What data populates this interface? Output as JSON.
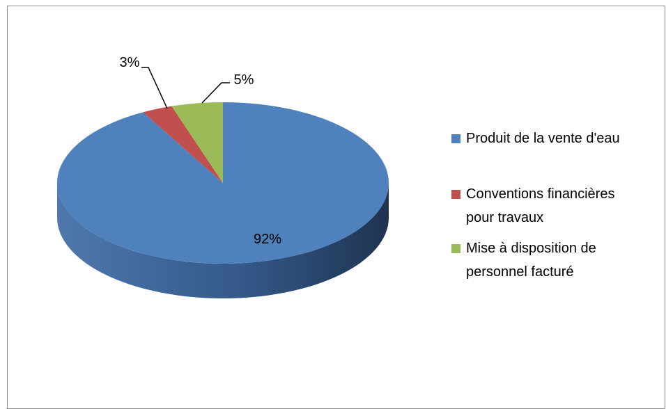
{
  "chart_data": {
    "type": "pie",
    "style": "3d",
    "categories": [
      "Produit de la vente d'eau",
      "Conventions financières pour travaux",
      "Mise à disposition de personnel facturé"
    ],
    "values": [
      92,
      3,
      5
    ],
    "data_labels": [
      "92%",
      "3%",
      "5%"
    ],
    "legend_position": "right",
    "legend_lines": [
      [
        "Produit de la vente d'eau"
      ],
      [
        "Conventions financières",
        "pour travaux"
      ],
      [
        "Mise à disposition de",
        "personnel facturé"
      ]
    ]
  },
  "colors": {
    "series": [
      "#4f81bd",
      "#c0504d",
      "#9bbb59"
    ],
    "side": [
      "#3c6799",
      "#9b3b39",
      "#7d9b45"
    ],
    "border": "#8c8c8c"
  }
}
